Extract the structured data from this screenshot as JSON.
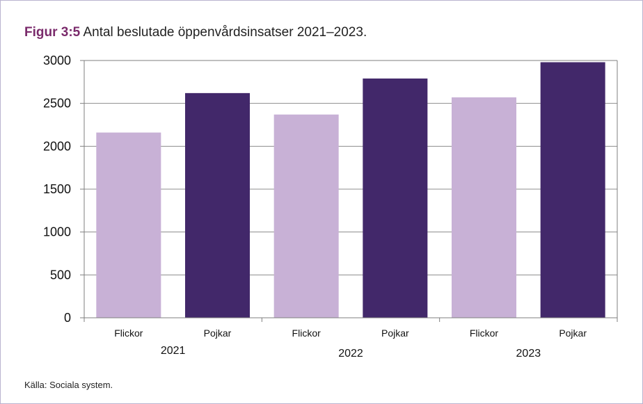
{
  "figure": {
    "label": "Figur 3:5",
    "text": "Antal beslutade öppenvårdsinsatser 2021–2023.",
    "source": "Källa: Sociala system."
  },
  "chart_data": {
    "type": "bar",
    "title": "Antal beslutade öppenvårdsinsatser 2021–2023.",
    "xlabel": "",
    "ylabel": "",
    "ylim": [
      0,
      3000
    ],
    "yticks": [
      0,
      500,
      1000,
      1500,
      2000,
      2500,
      3000
    ],
    "grid": true,
    "legend": "none",
    "groups": [
      "2021",
      "2022",
      "2023"
    ],
    "categories": [
      "Flickor",
      "Pojkar",
      "Flickor",
      "Pojkar",
      "Flickor",
      "Pojkar"
    ],
    "values": [
      2160,
      2620,
      2370,
      2790,
      2570,
      2980
    ],
    "colors": {
      "Flickor": "#c8b1d6",
      "Pojkar": "#42286a"
    }
  }
}
